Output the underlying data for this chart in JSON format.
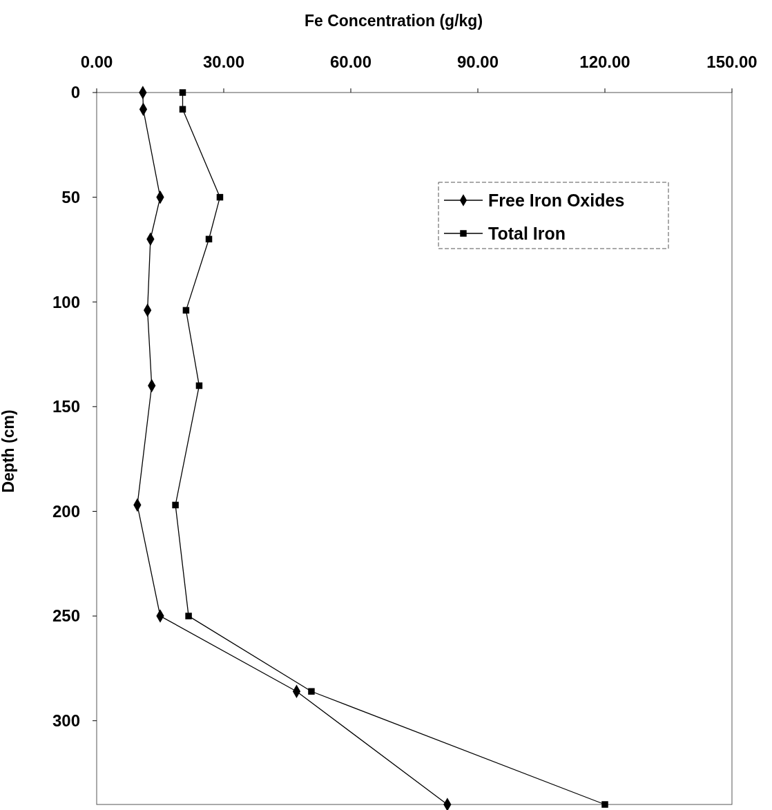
{
  "chart_data": {
    "type": "line",
    "xlabel": "Fe Concentration (g/kg)",
    "ylabel": "Depth (cm)",
    "xlim": [
      0,
      150
    ],
    "xticks": [
      {
        "value": 0,
        "label": "0.00"
      },
      {
        "value": 30,
        "label": "30.00"
      },
      {
        "value": 60,
        "label": "60.00"
      },
      {
        "value": 90,
        "label": "90.00"
      },
      {
        "value": 120,
        "label": "120.00"
      },
      {
        "value": 150,
        "label": "150.00"
      }
    ],
    "ylim": [
      340,
      0
    ],
    "yticks": [
      0,
      50,
      100,
      150,
      200,
      250,
      300
    ],
    "grid": false,
    "legend": "top right",
    "line_style": "solid",
    "series": [
      {
        "name": "Free Iron Oxides",
        "color": "#000000",
        "marker": "diamond",
        "x": [
          10.9,
          11,
          15,
          12.7,
          12,
          13,
          9.6,
          15,
          47.2,
          82.8
        ],
        "values": [
          0,
          8,
          50,
          70,
          104,
          140,
          197,
          250,
          286,
          340
        ]
      },
      {
        "name": "Total Iron",
        "color": "#000000",
        "marker": "square",
        "x": [
          20.3,
          20.3,
          29.1,
          26.5,
          21.1,
          24.2,
          18.6,
          21.7,
          50.7,
          120
        ],
        "values": [
          0,
          8,
          50,
          70,
          104,
          140,
          197,
          250,
          286,
          340
        ]
      }
    ]
  }
}
